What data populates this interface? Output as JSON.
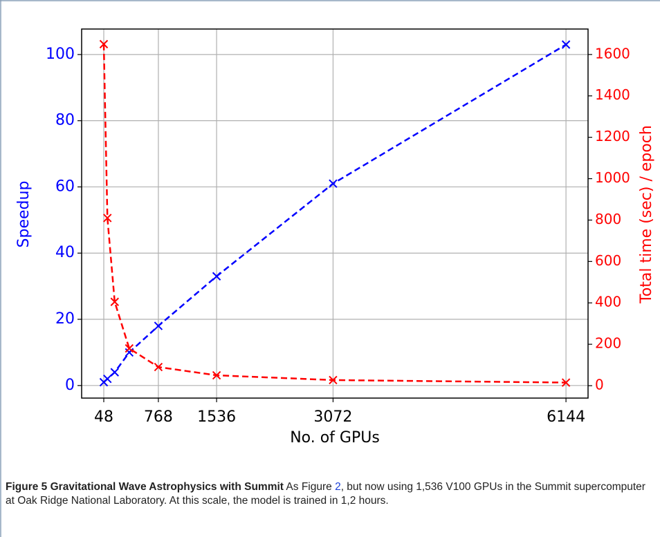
{
  "chart_data": {
    "type": "line",
    "x": [
      48,
      96,
      192,
      384,
      768,
      1536,
      3072,
      6144
    ],
    "xlabel": "No. of GPUs",
    "ylabel": "Speedup",
    "y2label": "Total time (sec) / epoch",
    "series": [
      {
        "name": "Speedup",
        "color": "#0000ff",
        "values": [
          1,
          2,
          4,
          10,
          18,
          33,
          61,
          103
        ]
      },
      {
        "name": "Total time (sec) / epoch",
        "color": "#ff0000",
        "axis": "y2",
        "values": [
          1650,
          810,
          405,
          180,
          90,
          50,
          27,
          15
        ]
      }
    ],
    "xlim": [
      -244,
      6435
    ],
    "xticks": [
      48,
      768,
      1536,
      3072,
      6144
    ],
    "ylim": [
      -3.8,
      107.7
    ],
    "yticks": [
      0,
      20,
      40,
      60,
      80,
      100
    ],
    "y2lim": [
      -60,
      1723
    ],
    "y2ticks": [
      0,
      200,
      400,
      600,
      800,
      1000,
      1200,
      1400,
      1600
    ],
    "grid": true
  },
  "caption": {
    "label": "Figure 5",
    "title": "Gravitational Wave Astrophysics with Summit",
    "text_before": "As Figure ",
    "ref": "2",
    "text_after": ", but now using 1,536 V100 GPUs in the Summit supercomputer at Oak Ridge National Laboratory. At this scale, the model is trained in 1,2 hours."
  }
}
